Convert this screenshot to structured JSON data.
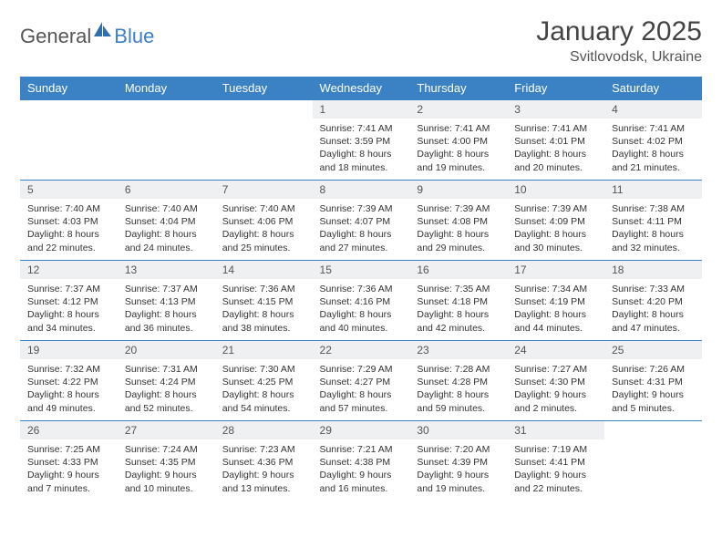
{
  "brand": {
    "text1": "General",
    "text2": "Blue",
    "icon_color": "#2f6fb0"
  },
  "header": {
    "month_title": "January 2025",
    "location": "Svitlovodsk, Ukraine"
  },
  "colors": {
    "header_bg": "#3b82c4",
    "header_text": "#ffffff",
    "daynum_bg": "#eef0f2",
    "border": "#3b82c4",
    "body_text": "#333333"
  },
  "day_labels": [
    "Sunday",
    "Monday",
    "Tuesday",
    "Wednesday",
    "Thursday",
    "Friday",
    "Saturday"
  ],
  "weeks": [
    [
      {
        "n": "",
        "l1": "",
        "l2": "",
        "l3": "",
        "l4": "",
        "empty": true
      },
      {
        "n": "",
        "l1": "",
        "l2": "",
        "l3": "",
        "l4": "",
        "empty": true
      },
      {
        "n": "",
        "l1": "",
        "l2": "",
        "l3": "",
        "l4": "",
        "empty": true
      },
      {
        "n": "1",
        "l1": "Sunrise: 7:41 AM",
        "l2": "Sunset: 3:59 PM",
        "l3": "Daylight: 8 hours",
        "l4": "and 18 minutes."
      },
      {
        "n": "2",
        "l1": "Sunrise: 7:41 AM",
        "l2": "Sunset: 4:00 PM",
        "l3": "Daylight: 8 hours",
        "l4": "and 19 minutes."
      },
      {
        "n": "3",
        "l1": "Sunrise: 7:41 AM",
        "l2": "Sunset: 4:01 PM",
        "l3": "Daylight: 8 hours",
        "l4": "and 20 minutes."
      },
      {
        "n": "4",
        "l1": "Sunrise: 7:41 AM",
        "l2": "Sunset: 4:02 PM",
        "l3": "Daylight: 8 hours",
        "l4": "and 21 minutes."
      }
    ],
    [
      {
        "n": "5",
        "l1": "Sunrise: 7:40 AM",
        "l2": "Sunset: 4:03 PM",
        "l3": "Daylight: 8 hours",
        "l4": "and 22 minutes."
      },
      {
        "n": "6",
        "l1": "Sunrise: 7:40 AM",
        "l2": "Sunset: 4:04 PM",
        "l3": "Daylight: 8 hours",
        "l4": "and 24 minutes."
      },
      {
        "n": "7",
        "l1": "Sunrise: 7:40 AM",
        "l2": "Sunset: 4:06 PM",
        "l3": "Daylight: 8 hours",
        "l4": "and 25 minutes."
      },
      {
        "n": "8",
        "l1": "Sunrise: 7:39 AM",
        "l2": "Sunset: 4:07 PM",
        "l3": "Daylight: 8 hours",
        "l4": "and 27 minutes."
      },
      {
        "n": "9",
        "l1": "Sunrise: 7:39 AM",
        "l2": "Sunset: 4:08 PM",
        "l3": "Daylight: 8 hours",
        "l4": "and 29 minutes."
      },
      {
        "n": "10",
        "l1": "Sunrise: 7:39 AM",
        "l2": "Sunset: 4:09 PM",
        "l3": "Daylight: 8 hours",
        "l4": "and 30 minutes."
      },
      {
        "n": "11",
        "l1": "Sunrise: 7:38 AM",
        "l2": "Sunset: 4:11 PM",
        "l3": "Daylight: 8 hours",
        "l4": "and 32 minutes."
      }
    ],
    [
      {
        "n": "12",
        "l1": "Sunrise: 7:37 AM",
        "l2": "Sunset: 4:12 PM",
        "l3": "Daylight: 8 hours",
        "l4": "and 34 minutes."
      },
      {
        "n": "13",
        "l1": "Sunrise: 7:37 AM",
        "l2": "Sunset: 4:13 PM",
        "l3": "Daylight: 8 hours",
        "l4": "and 36 minutes."
      },
      {
        "n": "14",
        "l1": "Sunrise: 7:36 AM",
        "l2": "Sunset: 4:15 PM",
        "l3": "Daylight: 8 hours",
        "l4": "and 38 minutes."
      },
      {
        "n": "15",
        "l1": "Sunrise: 7:36 AM",
        "l2": "Sunset: 4:16 PM",
        "l3": "Daylight: 8 hours",
        "l4": "and 40 minutes."
      },
      {
        "n": "16",
        "l1": "Sunrise: 7:35 AM",
        "l2": "Sunset: 4:18 PM",
        "l3": "Daylight: 8 hours",
        "l4": "and 42 minutes."
      },
      {
        "n": "17",
        "l1": "Sunrise: 7:34 AM",
        "l2": "Sunset: 4:19 PM",
        "l3": "Daylight: 8 hours",
        "l4": "and 44 minutes."
      },
      {
        "n": "18",
        "l1": "Sunrise: 7:33 AM",
        "l2": "Sunset: 4:20 PM",
        "l3": "Daylight: 8 hours",
        "l4": "and 47 minutes."
      }
    ],
    [
      {
        "n": "19",
        "l1": "Sunrise: 7:32 AM",
        "l2": "Sunset: 4:22 PM",
        "l3": "Daylight: 8 hours",
        "l4": "and 49 minutes."
      },
      {
        "n": "20",
        "l1": "Sunrise: 7:31 AM",
        "l2": "Sunset: 4:24 PM",
        "l3": "Daylight: 8 hours",
        "l4": "and 52 minutes."
      },
      {
        "n": "21",
        "l1": "Sunrise: 7:30 AM",
        "l2": "Sunset: 4:25 PM",
        "l3": "Daylight: 8 hours",
        "l4": "and 54 minutes."
      },
      {
        "n": "22",
        "l1": "Sunrise: 7:29 AM",
        "l2": "Sunset: 4:27 PM",
        "l3": "Daylight: 8 hours",
        "l4": "and 57 minutes."
      },
      {
        "n": "23",
        "l1": "Sunrise: 7:28 AM",
        "l2": "Sunset: 4:28 PM",
        "l3": "Daylight: 8 hours",
        "l4": "and 59 minutes."
      },
      {
        "n": "24",
        "l1": "Sunrise: 7:27 AM",
        "l2": "Sunset: 4:30 PM",
        "l3": "Daylight: 9 hours",
        "l4": "and 2 minutes."
      },
      {
        "n": "25",
        "l1": "Sunrise: 7:26 AM",
        "l2": "Sunset: 4:31 PM",
        "l3": "Daylight: 9 hours",
        "l4": "and 5 minutes."
      }
    ],
    [
      {
        "n": "26",
        "l1": "Sunrise: 7:25 AM",
        "l2": "Sunset: 4:33 PM",
        "l3": "Daylight: 9 hours",
        "l4": "and 7 minutes."
      },
      {
        "n": "27",
        "l1": "Sunrise: 7:24 AM",
        "l2": "Sunset: 4:35 PM",
        "l3": "Daylight: 9 hours",
        "l4": "and 10 minutes."
      },
      {
        "n": "28",
        "l1": "Sunrise: 7:23 AM",
        "l2": "Sunset: 4:36 PM",
        "l3": "Daylight: 9 hours",
        "l4": "and 13 minutes."
      },
      {
        "n": "29",
        "l1": "Sunrise: 7:21 AM",
        "l2": "Sunset: 4:38 PM",
        "l3": "Daylight: 9 hours",
        "l4": "and 16 minutes."
      },
      {
        "n": "30",
        "l1": "Sunrise: 7:20 AM",
        "l2": "Sunset: 4:39 PM",
        "l3": "Daylight: 9 hours",
        "l4": "and 19 minutes."
      },
      {
        "n": "31",
        "l1": "Sunrise: 7:19 AM",
        "l2": "Sunset: 4:41 PM",
        "l3": "Daylight: 9 hours",
        "l4": "and 22 minutes."
      },
      {
        "n": "",
        "l1": "",
        "l2": "",
        "l3": "",
        "l4": "",
        "empty": true
      }
    ]
  ]
}
